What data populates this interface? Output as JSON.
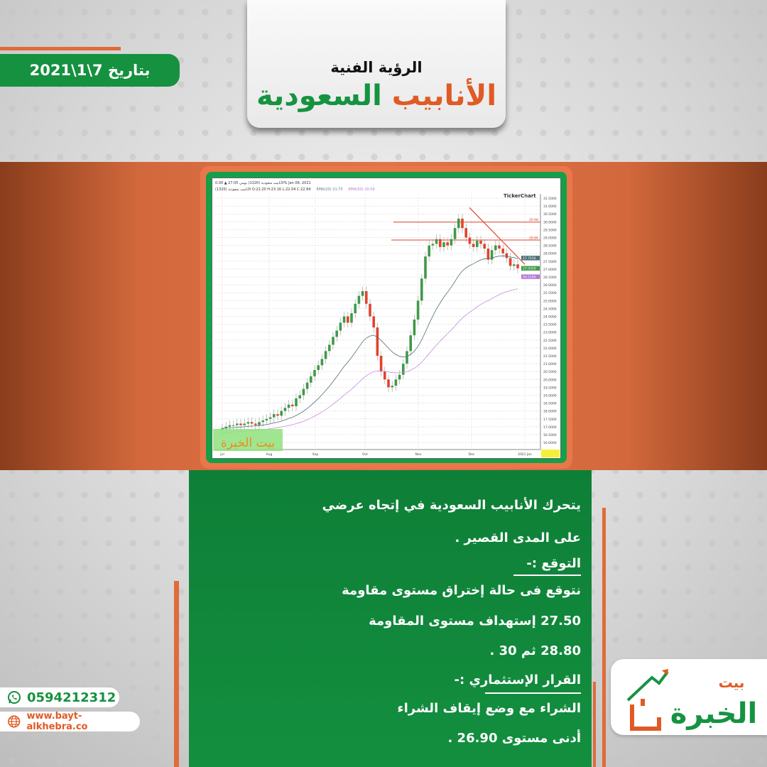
{
  "header": {
    "subtitle": "الرؤية الفنية",
    "title_part1": "الأنابيب",
    "title_part2": "السعودية",
    "date": "بتاريخ 7\\1\\2021"
  },
  "colors": {
    "orange": "#e05a25",
    "green": "#169341",
    "bull": "#3f9a4a",
    "bear": "#e2432b"
  },
  "chart": {
    "header_line1": "الأنابيب سعودية (1320) يومي 27.05 ▲ 0.00% Jan 06, 2021",
    "header_line2": "الأنابيب سعودية (1320) O:22.20 H:23.16 L:22.04 C:22.84",
    "ema20_label": "EMA(20) 21.73",
    "ema50_label": "EMA(50) 20.09",
    "brand": "TickerChart",
    "y_ticks": [
      "31.5000",
      "31.0000",
      "30.5000",
      "30.0000",
      "29.5000",
      "29.0000",
      "28.5000",
      "28.0000",
      "27.5000",
      "27.0000",
      "26.5000",
      "26.0000",
      "25.5000",
      "25.0000",
      "24.5000",
      "24.0000",
      "23.5000",
      "23.0000",
      "22.5000",
      "22.0000",
      "21.5000",
      "21.0000",
      "20.5000",
      "20.0000",
      "19.5000",
      "19.0000",
      "18.5000",
      "18.0000",
      "17.5000",
      "17.0000",
      "16.5000",
      "16.0000"
    ],
    "x_ticks": [
      "Jul",
      "Aug",
      "Sep",
      "Oct",
      "Nov",
      "Dec",
      "2021 Jan"
    ],
    "resistance_levels": [
      {
        "value": 29.98,
        "label": "29.98"
      },
      {
        "value": 28.84,
        "label": "28.84"
      }
    ],
    "price_tags": {
      "ema20": "27.7016",
      "close": "27.0500",
      "ema50": "26.5146"
    },
    "watermark": "بيت الخبرة",
    "closes": [
      16.9,
      17.0,
      17.1,
      17.1,
      17.2,
      17.1,
      17.2,
      17.3,
      17.2,
      17.1,
      17.3,
      17.4,
      17.5,
      17.6,
      17.8,
      17.7,
      18.0,
      18.2,
      18.4,
      18.3,
      18.8,
      19.0,
      19.4,
      19.8,
      20.2,
      20.6,
      20.9,
      21.3,
      21.8,
      22.2,
      22.7,
      23.1,
      23.6,
      24.0,
      23.6,
      24.2,
      24.8,
      25.3,
      25.6,
      24.8,
      24.0,
      23.3,
      21.5,
      20.5,
      20.0,
      19.5,
      19.6,
      20.0,
      20.3,
      21.0,
      21.8,
      22.8,
      23.8,
      25.0,
      26.4,
      27.8,
      28.5,
      28.6,
      28.9,
      28.4,
      28.7,
      28.5,
      28.9,
      29.6,
      30.2,
      29.6,
      29.0,
      28.6,
      28.4,
      28.8,
      28.6,
      28.3,
      27.6,
      28.2,
      28.5,
      28.3,
      28.0,
      27.7,
      27.2,
      27.3,
      27.05
    ]
  },
  "analysis": {
    "lines": [
      "يتحرك الأنابيب السعودية في إتجاه عرضي",
      "على المدى القصير .",
      "التوقع :-",
      "نتوقع فى حالة إختراق مستوى مقاومة",
      "27.50 إستهداف مستوى المقاومة",
      "28.80 ثم 30 .",
      "القرار الإستثماري :-",
      "الشراء مع وضع إيقاف الشراء",
      "أدنى مستوى 26.90 ."
    ]
  },
  "contact": {
    "phone": "0594212312",
    "website": "www.bayt-alkhebra.co",
    "phone_icon": "whatsapp-icon",
    "web_icon": "globe-icon"
  },
  "logo": {
    "text_top": "بيت",
    "text_main": "الخبرة"
  }
}
